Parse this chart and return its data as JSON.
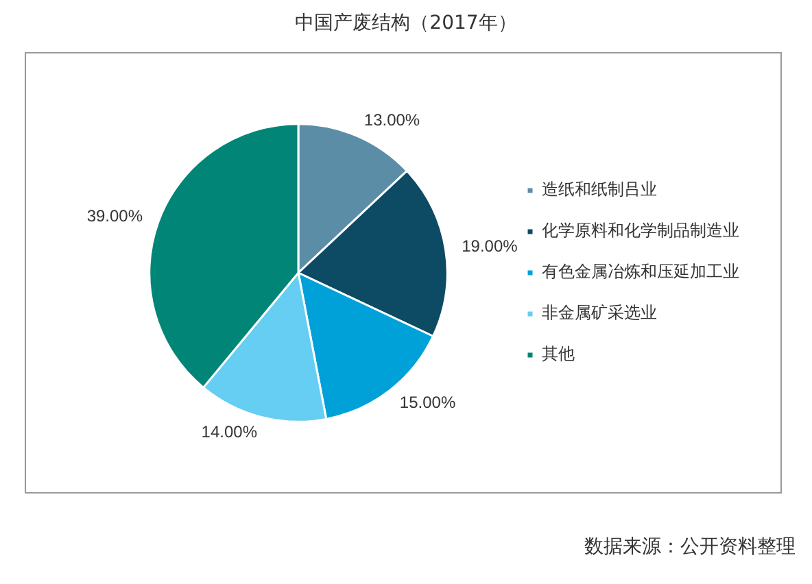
{
  "chart_data": {
    "type": "pie",
    "title": "中国产废结构（2017年）",
    "categories": [
      "造纸和纸制吕业",
      "化学原料和化学制品制造业",
      "有色金属冶炼和压延加工业",
      "非金属矿采选业",
      "其他"
    ],
    "values": [
      13,
      19,
      15,
      14,
      39
    ],
    "colors": [
      "#5b8ea6",
      "#0d4a63",
      "#00a1d9",
      "#66cdf3",
      "#008577"
    ],
    "value_labels": [
      "13.00%",
      "19.00%",
      "15.00%",
      "14.00%",
      "39.00%"
    ],
    "legend": "right",
    "annotations": [
      "数据来源：公开资料整理"
    ]
  }
}
